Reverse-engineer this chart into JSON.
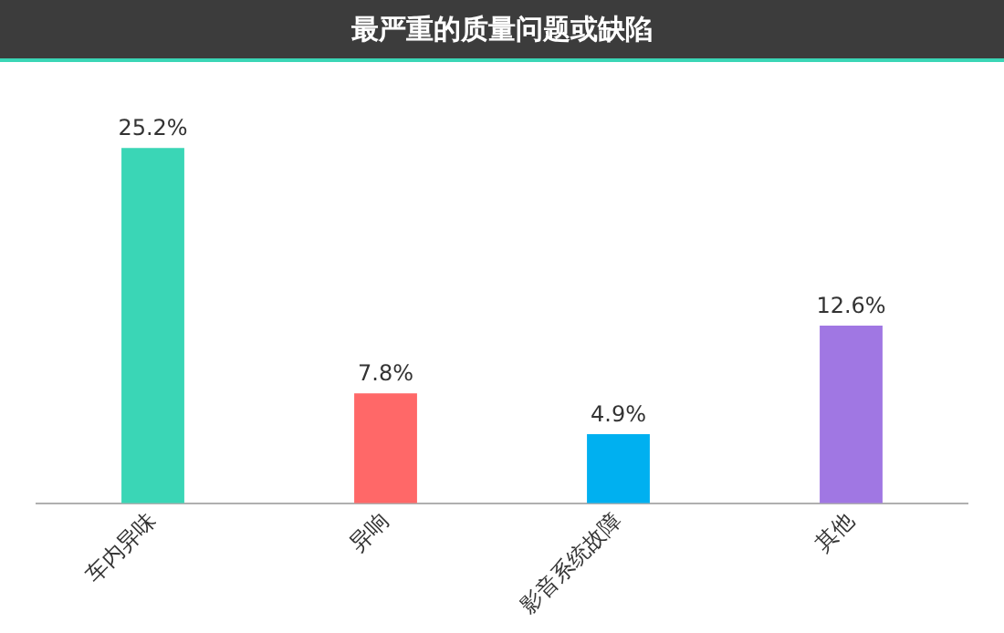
{
  "chart_data": {
    "type": "bar",
    "title": "最严重的质量问题或缺陷",
    "categories": [
      "车内异味",
      "异响",
      "影音系统故障",
      "其他"
    ],
    "values": [
      25.2,
      7.8,
      4.9,
      12.6
    ],
    "colors": [
      "#3ad6b6",
      "#ff6868",
      "#00b0f0",
      "#a077e3"
    ],
    "value_labels": [
      "25.2%",
      "7.8%",
      "4.9%",
      "12.6%"
    ],
    "grid": false,
    "legend": false
  }
}
